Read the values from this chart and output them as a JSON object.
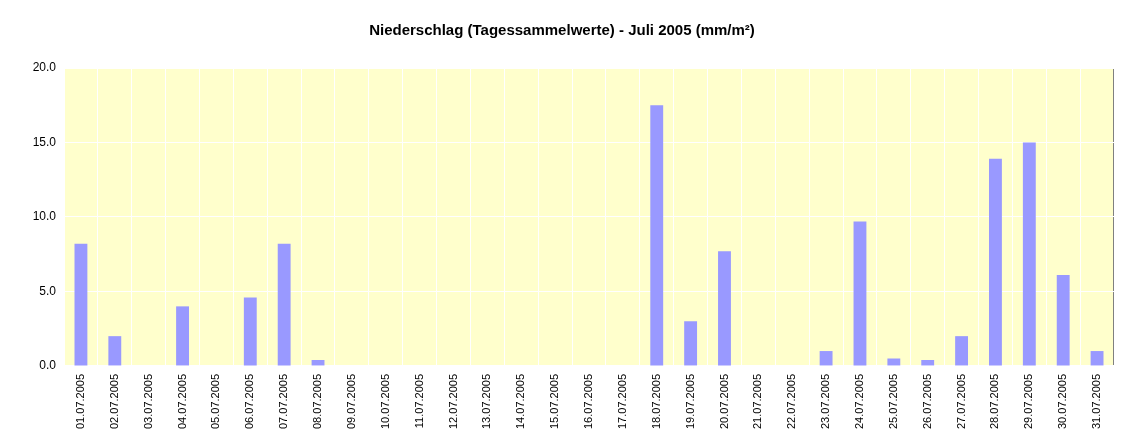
{
  "chart_data": {
    "type": "bar",
    "title": "Niederschlag (Tagessammelwerte) - Juli 2005 (mm/m²)",
    "categories": [
      "01.07.2005",
      "02.07.2005",
      "03.07.2005",
      "04.07.2005",
      "05.07.2005",
      "06.07.2005",
      "07.07.2005",
      "08.07.2005",
      "09.07.2005",
      "10.07.2005",
      "11.07.2005",
      "12.07.2005",
      "13.07.2005",
      "14.07.2005",
      "15.07.2005",
      "16.07.2005",
      "17.07.2005",
      "18.07.2005",
      "19.07.2005",
      "20.07.2005",
      "21.07.2005",
      "22.07.2005",
      "23.07.2005",
      "24.07.2005",
      "25.07.2005",
      "26.07.2005",
      "27.07.2005",
      "28.07.2005",
      "29.07.2005",
      "30.07.2005",
      "31.07.2005"
    ],
    "values": [
      8.2,
      2.0,
      0,
      4.0,
      0,
      4.6,
      8.2,
      0.4,
      0,
      0,
      0,
      0,
      0,
      0,
      0,
      0,
      0,
      17.5,
      3.0,
      7.7,
      0,
      0,
      1.0,
      9.7,
      0.5,
      0.4,
      2.0,
      13.9,
      15.0,
      6.1,
      1.0
    ],
    "color": "#9999ff",
    "ylim": [
      0,
      20
    ],
    "yticks": [
      {
        "value": 0,
        "label": "0.0"
      },
      {
        "value": 5,
        "label": "5.0"
      },
      {
        "value": 10,
        "label": "10.0"
      },
      {
        "value": 15,
        "label": "15.0"
      },
      {
        "value": 20,
        "label": "20.0"
      }
    ],
    "grid": true
  }
}
